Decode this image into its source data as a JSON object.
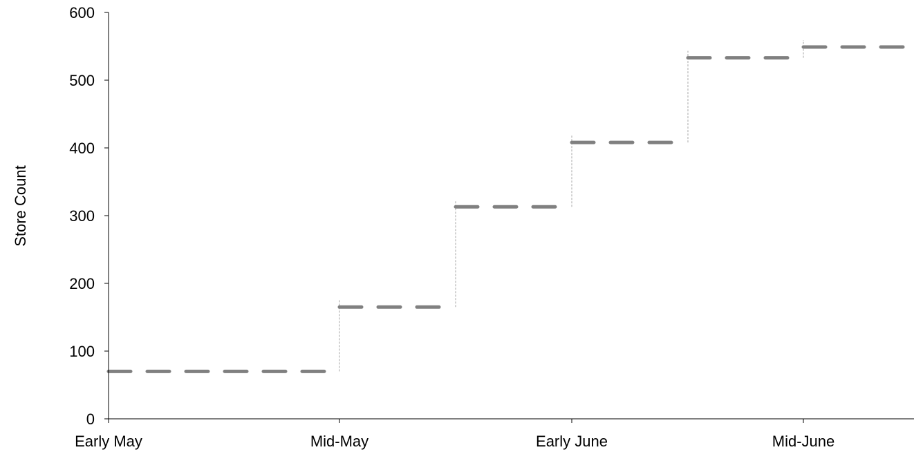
{
  "chart_data": {
    "type": "line",
    "title": "",
    "xlabel": "",
    "ylabel": "Store Count",
    "ylim": [
      0,
      600
    ],
    "y_ticks": [
      "0",
      "100",
      "200",
      "300",
      "400",
      "500",
      "600"
    ],
    "x_ticks": [
      "Early May",
      "Mid-May",
      "Early June",
      "Mid-June"
    ],
    "step": true,
    "grid": false,
    "series": [
      {
        "color": "#808080",
        "points": [
          {
            "start": "Early May",
            "value": 70
          },
          {
            "start": "Mid-May",
            "value": 165
          },
          {
            "start": "",
            "value": 313
          },
          {
            "start": "Early June",
            "value": 408
          },
          {
            "start": "",
            "value": 533
          },
          {
            "start": "Mid-June",
            "value": 549
          }
        ]
      }
    ],
    "colors": {
      "series": "#808080",
      "connector": "#a6a6a6",
      "axis": "#000000"
    }
  }
}
